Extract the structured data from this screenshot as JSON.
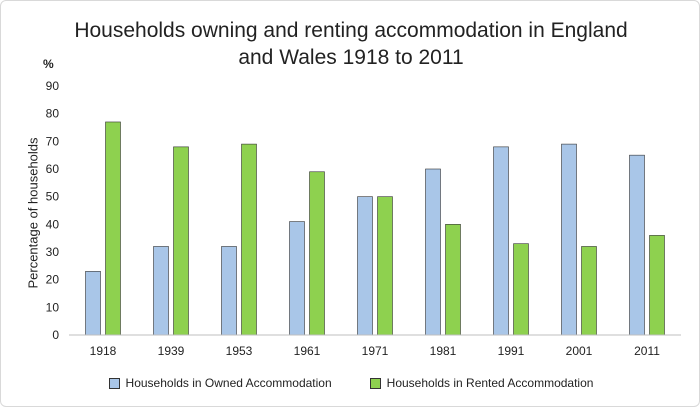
{
  "chart_data": {
    "type": "bar",
    "title_line1": "Households owning and renting accommodation in England",
    "title_line2": "and Wales 1918 to 2011",
    "unit": "%",
    "ylabel": "Percentage of households",
    "xlabel": "",
    "ylim": [
      0,
      90
    ],
    "yticks": [
      0,
      10,
      20,
      30,
      40,
      50,
      60,
      70,
      80,
      90
    ],
    "categories": [
      "1918",
      "1939",
      "1953",
      "1961",
      "1971",
      "1981",
      "1991",
      "2001",
      "2011"
    ],
    "series": [
      {
        "name": "Households in Owned Accommodation",
        "color": "#a9c6e8",
        "values": [
          23,
          32,
          32,
          41,
          50,
          60,
          68,
          69,
          65
        ]
      },
      {
        "name": "Households in Rented Accommodation",
        "color": "#8ed14f",
        "values": [
          77,
          68,
          69,
          59,
          50,
          40,
          33,
          32,
          36
        ]
      }
    ],
    "grid": false,
    "legend_position": "bottom"
  }
}
